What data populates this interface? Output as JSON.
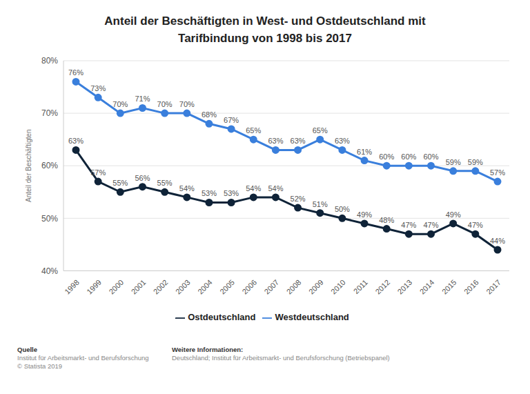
{
  "chart_data": {
    "type": "line",
    "title": "Anteil der Beschäftigten in West- und Ostdeutschland mit Tarifbindung von 1998 bis 2017",
    "ylabel": "Anteil der Beschäftigten",
    "categories": [
      "1998",
      "1999",
      "2000",
      "2001",
      "2002",
      "2003",
      "2004",
      "2005",
      "2006",
      "2007",
      "2008",
      "2009",
      "2010",
      "2011",
      "2012",
      "2013",
      "2014",
      "2015",
      "2016",
      "2017"
    ],
    "series": [
      {
        "name": "Westdeutschland",
        "color": "#3a7fdc",
        "values": [
          76,
          73,
          70,
          71,
          70,
          70,
          68,
          67,
          65,
          63,
          63,
          65,
          63,
          61,
          60,
          60,
          60,
          59,
          59,
          57
        ],
        "value_labels": [
          "76%",
          "73%",
          "70%",
          "71%",
          "70%",
          "70%",
          "68%",
          "67%",
          "65%",
          "63%",
          "63%",
          "65%",
          "63%",
          "61%",
          "60%",
          "60%",
          "60%",
          "59%",
          "59%",
          "57%"
        ]
      },
      {
        "name": "Ostdeutschland",
        "color": "#0f2338",
        "values": [
          63,
          57,
          55,
          56,
          55,
          54,
          53,
          53,
          54,
          54,
          52,
          51,
          50,
          49,
          48,
          47,
          47,
          49,
          47,
          44
        ],
        "value_labels": [
          "63%",
          "57%",
          "55%",
          "56%",
          "55%",
          "54%",
          "53%",
          "53%",
          "54%",
          "54%",
          "52%",
          "51%",
          "50%",
          "49%",
          "48%",
          "47%",
          "47%",
          "49%",
          "47%",
          "44%"
        ]
      }
    ],
    "ylim": [
      40,
      80
    ],
    "yticks": [
      {
        "value": 40,
        "label": "40%"
      },
      {
        "value": 50,
        "label": "50%"
      },
      {
        "value": 60,
        "label": "60%"
      },
      {
        "value": 70,
        "label": "70%"
      },
      {
        "value": 80,
        "label": "80%"
      }
    ],
    "grid": true,
    "legend": "bottom",
    "data_labels": true,
    "marker": "circle",
    "source": {
      "heading": "Quelle",
      "lines": [
        "Institut für Arbeitsmarkt- und Berufsforschung",
        "© Statista 2019"
      ]
    },
    "more_info": {
      "heading": "Weitere Informationen:",
      "lines": [
        "Deutschland; Institut für Arbeitsmarkt- und Berufsforschung (Betriebspanel)"
      ]
    }
  }
}
